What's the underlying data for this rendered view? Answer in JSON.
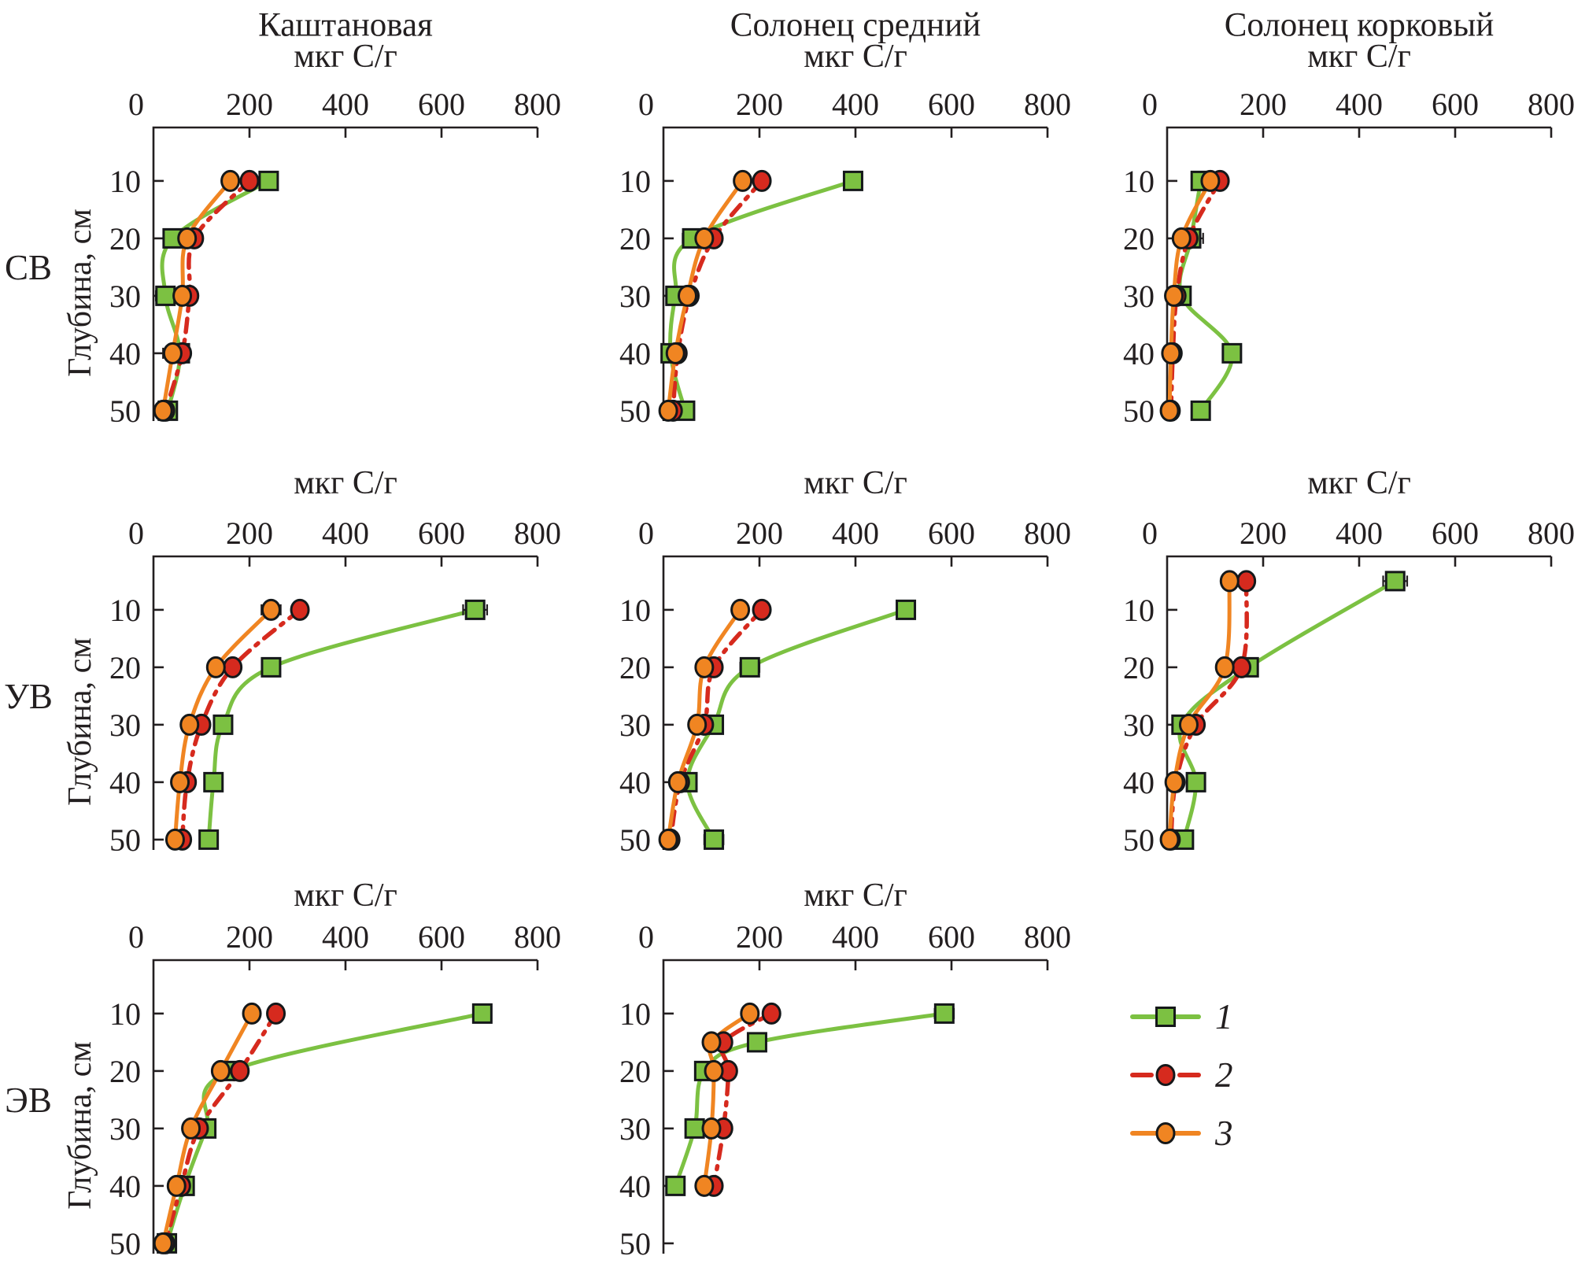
{
  "figure": {
    "column_titles": [
      "Каштановая",
      "Солонец средний",
      "Солонец корковый"
    ],
    "row_labels": [
      "СВ",
      "УВ",
      "ЭВ"
    ],
    "y_axis_label": "Глубина, см",
    "x_axis_label": "мкг С/г"
  },
  "colors": {
    "series1": "#7cc142",
    "series2": "#d62a1e",
    "series3": "#f08522",
    "marker_stroke": "#15181a",
    "axis": "#231f20",
    "text": "#231f20",
    "error": "#231f20",
    "background": "#ffffff"
  },
  "axis": {
    "x_title": "мкг С/г",
    "x_ticks": [
      0,
      200,
      400,
      600,
      800
    ],
    "x_max": 800,
    "y_ticks": [
      10,
      20,
      30,
      40,
      50
    ],
    "y_label": "Глубина, см"
  },
  "legend": {
    "items": [
      {
        "label": "1",
        "series": "1"
      },
      {
        "label": "2",
        "series": "2"
      },
      {
        "label": "3",
        "series": "3"
      }
    ]
  },
  "chart_data": [
    {
      "type": "line",
      "row": 0,
      "col": 0,
      "row_label": "СВ",
      "column": "Каштановая",
      "x_label": "мкг С/г",
      "y_label": "Глубина, см",
      "x_range": [
        0,
        800
      ],
      "depths": [
        10,
        20,
        30,
        40,
        50
      ],
      "series": [
        {
          "id": "1",
          "name": "1",
          "values": [
            240,
            40,
            25,
            55,
            30
          ],
          "err": [
            0,
            0,
            20,
            0,
            0
          ]
        },
        {
          "id": "2",
          "name": "2",
          "values": [
            200,
            85,
            75,
            60,
            25
          ],
          "err": [
            0,
            0,
            0,
            0,
            0
          ]
        },
        {
          "id": "3",
          "name": "3",
          "values": [
            160,
            70,
            60,
            40,
            20
          ],
          "err": [
            15,
            0,
            0,
            20,
            15
          ]
        }
      ]
    },
    {
      "type": "line",
      "row": 0,
      "col": 1,
      "row_label": "СВ",
      "column": "Солонец средний",
      "x_label": "мкг С/г",
      "y_label": "Глубина, см",
      "x_range": [
        0,
        800
      ],
      "depths": [
        10,
        20,
        30,
        40,
        50
      ],
      "series": [
        {
          "id": "1",
          "name": "1",
          "values": [
            395,
            60,
            25,
            15,
            45
          ],
          "err": [
            0,
            20,
            15,
            0,
            0
          ]
        },
        {
          "id": "2",
          "name": "2",
          "values": [
            205,
            105,
            55,
            30,
            20
          ],
          "err": [
            0,
            0,
            0,
            0,
            0
          ]
        },
        {
          "id": "3",
          "name": "3",
          "values": [
            165,
            85,
            50,
            25,
            10
          ],
          "err": [
            0,
            0,
            0,
            15,
            10
          ]
        }
      ]
    },
    {
      "type": "line",
      "row": 0,
      "col": 2,
      "row_label": "СВ",
      "column": "Солонец корковый",
      "x_label": "мкг С/г",
      "y_label": "Глубина, см",
      "x_range": [
        0,
        800
      ],
      "depths": [
        10,
        20,
        30,
        40,
        50
      ],
      "series": [
        {
          "id": "1",
          "name": "1",
          "values": [
            70,
            50,
            30,
            135,
            70
          ],
          "err": [
            10,
            25,
            15,
            0,
            15
          ]
        },
        {
          "id": "2",
          "name": "2",
          "values": [
            110,
            45,
            20,
            12,
            8
          ],
          "err": [
            0,
            0,
            0,
            0,
            0
          ]
        },
        {
          "id": "3",
          "name": "3",
          "values": [
            90,
            30,
            14,
            8,
            5
          ],
          "err": [
            10,
            15,
            10,
            8,
            5
          ]
        }
      ]
    },
    {
      "type": "line",
      "row": 1,
      "col": 0,
      "row_label": "УВ",
      "column": "Каштановая",
      "x_label": "мкг С/г",
      "y_label": "Глубина, см",
      "x_range": [
        0,
        800
      ],
      "depths": [
        10,
        20,
        30,
        40,
        50
      ],
      "series": [
        {
          "id": "1",
          "name": "1",
          "values": [
            670,
            245,
            145,
            125,
            115
          ],
          "err": [
            25,
            0,
            15,
            15,
            0
          ]
        },
        {
          "id": "2",
          "name": "2",
          "values": [
            305,
            165,
            100,
            70,
            60
          ],
          "err": [
            0,
            0,
            0,
            0,
            0
          ]
        },
        {
          "id": "3",
          "name": "3",
          "values": [
            245,
            130,
            75,
            55,
            45
          ],
          "err": [
            20,
            15,
            0,
            0,
            0
          ]
        }
      ]
    },
    {
      "type": "line",
      "row": 1,
      "col": 1,
      "row_label": "УВ",
      "column": "Солонец средний",
      "x_label": "мкг С/г",
      "y_label": "Глубина, см",
      "x_range": [
        0,
        800
      ],
      "depths": [
        10,
        20,
        30,
        40,
        50
      ],
      "series": [
        {
          "id": "1",
          "name": "1",
          "values": [
            505,
            180,
            105,
            50,
            105
          ],
          "err": [
            0,
            20,
            10,
            0,
            20
          ]
        },
        {
          "id": "2",
          "name": "2",
          "values": [
            205,
            105,
            85,
            35,
            15
          ],
          "err": [
            0,
            0,
            0,
            0,
            0
          ]
        },
        {
          "id": "3",
          "name": "3",
          "values": [
            160,
            85,
            70,
            30,
            10
          ],
          "err": [
            15,
            0,
            15,
            10,
            0
          ]
        }
      ]
    },
    {
      "type": "line",
      "row": 1,
      "col": 2,
      "row_label": "УВ",
      "column": "Солонец корковый",
      "x_label": "мкг С/г",
      "y_label": "Глубина, см",
      "x_range": [
        0,
        800
      ],
      "depths": [
        5,
        20,
        30,
        40,
        50
      ],
      "series": [
        {
          "id": "1",
          "name": "1",
          "values": [
            475,
            170,
            30,
            60,
            35
          ],
          "err": [
            25,
            15,
            10,
            0,
            15
          ]
        },
        {
          "id": "2",
          "name": "2",
          "values": [
            165,
            155,
            60,
            18,
            8
          ],
          "err": [
            0,
            0,
            0,
            0,
            0
          ]
        },
        {
          "id": "3",
          "name": "3",
          "values": [
            130,
            120,
            45,
            15,
            5
          ],
          "err": [
            15,
            0,
            10,
            8,
            0
          ]
        }
      ]
    },
    {
      "type": "line",
      "row": 2,
      "col": 0,
      "row_label": "ЭВ",
      "column": "Каштановая",
      "x_label": "мкг С/г",
      "y_label": "Глубина, см",
      "x_range": [
        0,
        800
      ],
      "depths": [
        10,
        20,
        30,
        40,
        50
      ],
      "series": [
        {
          "id": "1",
          "name": "1",
          "values": [
            685,
            160,
            110,
            65,
            28
          ],
          "err": [
            0,
            0,
            15,
            0,
            0
          ]
        },
        {
          "id": "2",
          "name": "2",
          "values": [
            255,
            180,
            95,
            58,
            25
          ],
          "err": [
            0,
            0,
            0,
            0,
            0
          ]
        },
        {
          "id": "3",
          "name": "3",
          "values": [
            205,
            140,
            78,
            48,
            20
          ],
          "err": [
            15,
            0,
            15,
            15,
            0
          ]
        }
      ]
    },
    {
      "type": "line",
      "row": 2,
      "col": 1,
      "row_label": "ЭВ",
      "column": "Солонец средний",
      "x_label": "мкг С/г",
      "y_label": "Глубина, см",
      "x_range": [
        0,
        800
      ],
      "depths": [
        10,
        15,
        20,
        30,
        40
      ],
      "series": [
        {
          "id": "1",
          "name": "1",
          "values": [
            585,
            195,
            85,
            65,
            25
          ],
          "err": [
            20,
            0,
            15,
            0,
            15
          ]
        },
        {
          "id": "2",
          "name": "2",
          "values": [
            225,
            125,
            135,
            125,
            105
          ],
          "err": [
            0,
            0,
            0,
            0,
            0
          ]
        },
        {
          "id": "3",
          "name": "3",
          "values": [
            180,
            100,
            105,
            100,
            85
          ],
          "err": [
            0,
            15,
            0,
            0,
            0
          ]
        }
      ]
    }
  ]
}
